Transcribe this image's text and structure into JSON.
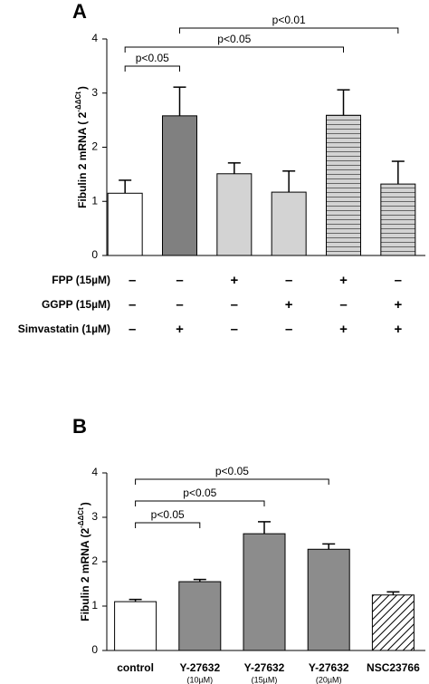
{
  "chart_data": [
    {
      "type": "bar",
      "panel": "A",
      "ylabel": "Fibulin 2 mRNA ( 2",
      "ylabel_sup": "-ΔΔCt",
      "ylabel_end": ")",
      "values": [
        1.15,
        2.58,
        1.51,
        1.17,
        2.59,
        1.32
      ],
      "errors": [
        0.24,
        0.53,
        0.2,
        0.39,
        0.47,
        0.42
      ],
      "colors": [
        "#ffffff",
        "#808080",
        "#d3d3d3",
        "#d3d3d3",
        "#d3d3d3",
        "#d3d3d3"
      ],
      "patterns": [
        "none",
        "none",
        "none",
        "none",
        "hlines",
        "hlines"
      ],
      "ylim": [
        0,
        4
      ],
      "yticks": [
        0,
        1,
        2,
        3,
        4
      ],
      "significance": [
        {
          "from": 0,
          "to": 1,
          "label": "p<0.05"
        },
        {
          "from": 0,
          "to": 4,
          "label": "p<0.05"
        },
        {
          "from": 1,
          "to": 5,
          "label": "p<0.01"
        }
      ],
      "treatments": [
        {
          "label": "FPP (15µM)",
          "signs": [
            "–",
            "–",
            "+",
            "–",
            "+",
            "–"
          ]
        },
        {
          "label": "GGPP (15µM)",
          "signs": [
            "–",
            "–",
            "–",
            "+",
            "–",
            "+"
          ]
        },
        {
          "label": "Simvastatin (1µM)",
          "signs": [
            "–",
            "+",
            "–",
            "–",
            "+",
            "+"
          ]
        }
      ]
    },
    {
      "type": "bar",
      "panel": "B",
      "ylabel": "Fibulin 2 mRNA (2",
      "ylabel_sup": "-ΔΔCt",
      "ylabel_end": ")",
      "categories": [
        "control",
        "Y-27632",
        "Y-27632",
        "Y-27632",
        "NSC23766"
      ],
      "sublabels": [
        null,
        "(10µM)",
        "(15µM)",
        "(20µM)",
        null
      ],
      "values": [
        1.1,
        1.55,
        2.63,
        2.28,
        1.25
      ],
      "errors": [
        0.05,
        0.05,
        0.27,
        0.12,
        0.07
      ],
      "colors": [
        "#ffffff",
        "#8c8c8c",
        "#8c8c8c",
        "#8c8c8c",
        "#ffffff"
      ],
      "patterns": [
        "none",
        "none",
        "none",
        "none",
        "diag"
      ],
      "ylim": [
        0,
        4
      ],
      "yticks": [
        0,
        1,
        2,
        3,
        4
      ],
      "significance": [
        {
          "from": 0,
          "to": 1,
          "label": "p<0.05"
        },
        {
          "from": 0,
          "to": 2,
          "label": "p<0.05"
        },
        {
          "from": 0,
          "to": 3,
          "label": "p<0.05"
        }
      ]
    }
  ]
}
